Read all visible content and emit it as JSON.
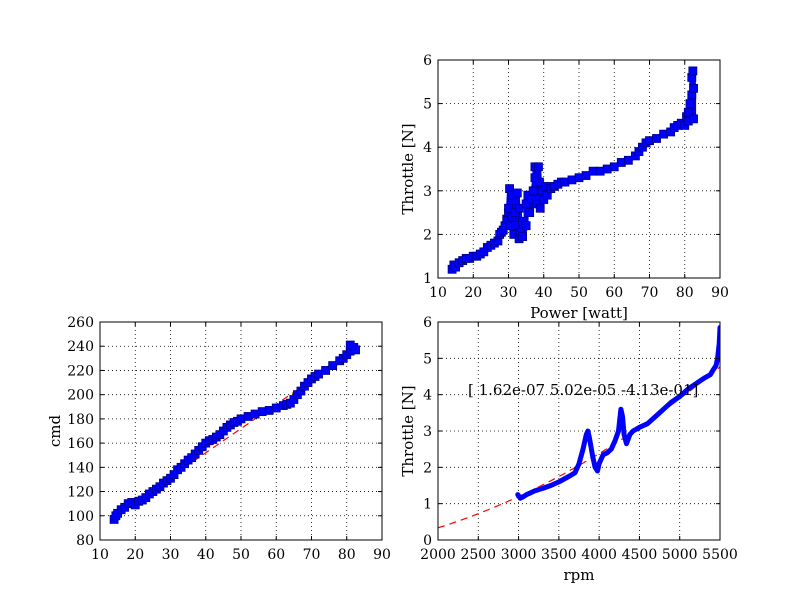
{
  "colors": {
    "points": "#0000ff",
    "fit": "#ff0000",
    "grid": "#000000"
  },
  "chart_data": [
    {
      "id": "top-right",
      "type": "scatter",
      "title": "",
      "xlabel": "Power [watt]",
      "ylabel": "Throttle [N]",
      "xlim": [
        10,
        90
      ],
      "ylim": [
        1,
        6
      ],
      "xticks": [
        10,
        20,
        30,
        40,
        50,
        60,
        70,
        80,
        90
      ],
      "yticks": [
        1,
        2,
        3,
        4,
        5,
        6
      ],
      "grid": true,
      "series": [
        {
          "values": [
            [
              14,
              1.2
            ],
            [
              14.5,
              1.3
            ],
            [
              15,
              1.25
            ],
            [
              16,
              1.35
            ],
            [
              17,
              1.4
            ],
            [
              18,
              1.45
            ],
            [
              19,
              1.45
            ],
            [
              20,
              1.5
            ],
            [
              21,
              1.5
            ],
            [
              22,
              1.55
            ],
            [
              23,
              1.6
            ],
            [
              24,
              1.7
            ],
            [
              25,
              1.75
            ],
            [
              26,
              1.8
            ],
            [
              27,
              1.85
            ],
            [
              27.5,
              2.0
            ],
            [
              28,
              2.05
            ],
            [
              28.5,
              2.1
            ],
            [
              29,
              2.2
            ],
            [
              29.5,
              2.35
            ],
            [
              30,
              2.5
            ],
            [
              30,
              2.6
            ],
            [
              30.3,
              3.05
            ],
            [
              30.5,
              2.2
            ],
            [
              31,
              2.4
            ],
            [
              31,
              2.9
            ],
            [
              31.5,
              2.0
            ],
            [
              32,
              2.2
            ],
            [
              32,
              2.5
            ],
            [
              32.5,
              2.95
            ],
            [
              33,
              1.9
            ],
            [
              33,
              2.6
            ],
            [
              33.5,
              2.05
            ],
            [
              34,
              2.3
            ],
            [
              34,
              1.95
            ],
            [
              35,
              2.2
            ],
            [
              35,
              2.7
            ],
            [
              35.5,
              2.9
            ],
            [
              36,
              2.5
            ],
            [
              36.5,
              2.8
            ],
            [
              37,
              3.0
            ],
            [
              37.5,
              3.3
            ],
            [
              37.5,
              3.55
            ],
            [
              38,
              2.7
            ],
            [
              38.5,
              3.55
            ],
            [
              38.8,
              3.2
            ],
            [
              39,
              2.6
            ],
            [
              39.5,
              3.0
            ],
            [
              40,
              2.8
            ],
            [
              40.5,
              3.1
            ],
            [
              41,
              2.9
            ],
            [
              42,
              3.05
            ],
            [
              43,
              3.1
            ],
            [
              44,
              3.15
            ],
            [
              45,
              3.2
            ],
            [
              46,
              3.2
            ],
            [
              48,
              3.25
            ],
            [
              50,
              3.3
            ],
            [
              52,
              3.35
            ],
            [
              54,
              3.45
            ],
            [
              56,
              3.45
            ],
            [
              58,
              3.5
            ],
            [
              60,
              3.55
            ],
            [
              62,
              3.65
            ],
            [
              64,
              3.7
            ],
            [
              66,
              3.8
            ],
            [
              67,
              3.9
            ],
            [
              68,
              4.0
            ],
            [
              69,
              4.1
            ],
            [
              70,
              4.15
            ],
            [
              72,
              4.2
            ],
            [
              74,
              4.3
            ],
            [
              76,
              4.35
            ],
            [
              77,
              4.45
            ],
            [
              78,
              4.5
            ],
            [
              79,
              4.55
            ],
            [
              80,
              4.5
            ],
            [
              80.5,
              4.7
            ],
            [
              81,
              4.6
            ],
            [
              81,
              4.8
            ],
            [
              81.5,
              5.0
            ],
            [
              82,
              5.2
            ],
            [
              82,
              5.6
            ],
            [
              82.3,
              5.75
            ],
            [
              82.5,
              5.35
            ],
            [
              82.5,
              4.65
            ]
          ]
        }
      ]
    },
    {
      "id": "bottom-left",
      "type": "scatter",
      "title": "",
      "xlabel": "",
      "ylabel": "cmd",
      "xlim": [
        10,
        90
      ],
      "ylim": [
        80,
        260
      ],
      "xticks": [
        10,
        20,
        30,
        40,
        50,
        60,
        70,
        80,
        90
      ],
      "yticks": [
        80,
        100,
        120,
        140,
        160,
        180,
        200,
        220,
        240,
        260
      ],
      "grid": true,
      "fit_line": {
        "x": [
          14,
          83
        ],
        "y": [
          100,
          238
        ]
      },
      "series": [
        {
          "values": [
            [
              14,
              97
            ],
            [
              14.5,
              100
            ],
            [
              15,
              102
            ],
            [
              16,
              105
            ],
            [
              17,
              107
            ],
            [
              18,
              110
            ],
            [
              19,
              111
            ],
            [
              20,
              109
            ],
            [
              21,
              112
            ],
            [
              22,
              113
            ],
            [
              23,
              115
            ],
            [
              24,
              118
            ],
            [
              25,
              120
            ],
            [
              26,
              122
            ],
            [
              27,
              124
            ],
            [
              28,
              127
            ],
            [
              29,
              129
            ],
            [
              30,
              131
            ],
            [
              31,
              134
            ],
            [
              32,
              138
            ],
            [
              33,
              140
            ],
            [
              34,
              143
            ],
            [
              35,
              146
            ],
            [
              36,
              148
            ],
            [
              37,
              151
            ],
            [
              38,
              154
            ],
            [
              39,
              157
            ],
            [
              40,
              160
            ],
            [
              41,
              162
            ],
            [
              42,
              163
            ],
            [
              43,
              165
            ],
            [
              44,
              167
            ],
            [
              45,
              170
            ],
            [
              46,
              173
            ],
            [
              47,
              175
            ],
            [
              48,
              177
            ],
            [
              49,
              178
            ],
            [
              50,
              180
            ],
            [
              52,
              182
            ],
            [
              54,
              184
            ],
            [
              56,
              186
            ],
            [
              58,
              187
            ],
            [
              60,
              189
            ],
            [
              62,
              191
            ],
            [
              63,
              192
            ],
            [
              64,
              193
            ],
            [
              65,
              196
            ],
            [
              66,
              200
            ],
            [
              67,
              203
            ],
            [
              68,
              207
            ],
            [
              69,
              210
            ],
            [
              70,
              213
            ],
            [
              71,
              215
            ],
            [
              72,
              217
            ],
            [
              74,
              220
            ],
            [
              76,
              224
            ],
            [
              78,
              228
            ],
            [
              79,
              230
            ],
            [
              80,
              233
            ],
            [
              81,
              236
            ],
            [
              81,
              241
            ],
            [
              82,
              239
            ],
            [
              82.5,
              237
            ]
          ]
        }
      ]
    },
    {
      "id": "bottom-right",
      "type": "line",
      "title": "",
      "xlabel": "rpm",
      "ylabel": "Throttle [N]",
      "xlim": [
        2000,
        5500
      ],
      "ylim": [
        0,
        6
      ],
      "xticks": [
        2000,
        2500,
        3000,
        3500,
        4000,
        4500,
        5000,
        5500
      ],
      "yticks": [
        0,
        1,
        2,
        3,
        4,
        5,
        6
      ],
      "grid": true,
      "annotation": "[ 1.62e-07  5.02e-05 -4.13e-01]",
      "fit_coeffs": [
        1.62e-07,
        5.02e-05,
        -0.413
      ],
      "series": [
        {
          "values": [
            [
              2990,
              1.25
            ],
            [
              3020,
              1.15
            ],
            [
              3050,
              1.18
            ],
            [
              3100,
              1.25
            ],
            [
              3150,
              1.3
            ],
            [
              3200,
              1.35
            ],
            [
              3300,
              1.42
            ],
            [
              3400,
              1.5
            ],
            [
              3500,
              1.6
            ],
            [
              3600,
              1.72
            ],
            [
              3650,
              1.78
            ],
            [
              3700,
              1.85
            ],
            [
              3750,
              2.1
            ],
            [
              3800,
              2.5
            ],
            [
              3840,
              2.9
            ],
            [
              3860,
              3.0
            ],
            [
              3880,
              2.8
            ],
            [
              3920,
              2.3
            ],
            [
              3950,
              2.0
            ],
            [
              3980,
              1.9
            ],
            [
              4000,
              2.1
            ],
            [
              4050,
              2.35
            ],
            [
              4100,
              2.4
            ],
            [
              4150,
              2.5
            ],
            [
              4200,
              2.75
            ],
            [
              4240,
              3.0
            ],
            [
              4270,
              3.6
            ],
            [
              4290,
              3.4
            ],
            [
              4310,
              2.9
            ],
            [
              4340,
              2.65
            ],
            [
              4380,
              2.9
            ],
            [
              4420,
              3.0
            ],
            [
              4500,
              3.1
            ],
            [
              4600,
              3.2
            ],
            [
              4700,
              3.4
            ],
            [
              4800,
              3.6
            ],
            [
              4900,
              3.8
            ],
            [
              5000,
              3.95
            ],
            [
              5100,
              4.15
            ],
            [
              5200,
              4.3
            ],
            [
              5300,
              4.45
            ],
            [
              5380,
              4.55
            ],
            [
              5420,
              4.7
            ],
            [
              5450,
              4.8
            ],
            [
              5470,
              5.0
            ],
            [
              5490,
              5.4
            ],
            [
              5500,
              5.85
            ]
          ]
        }
      ]
    }
  ]
}
